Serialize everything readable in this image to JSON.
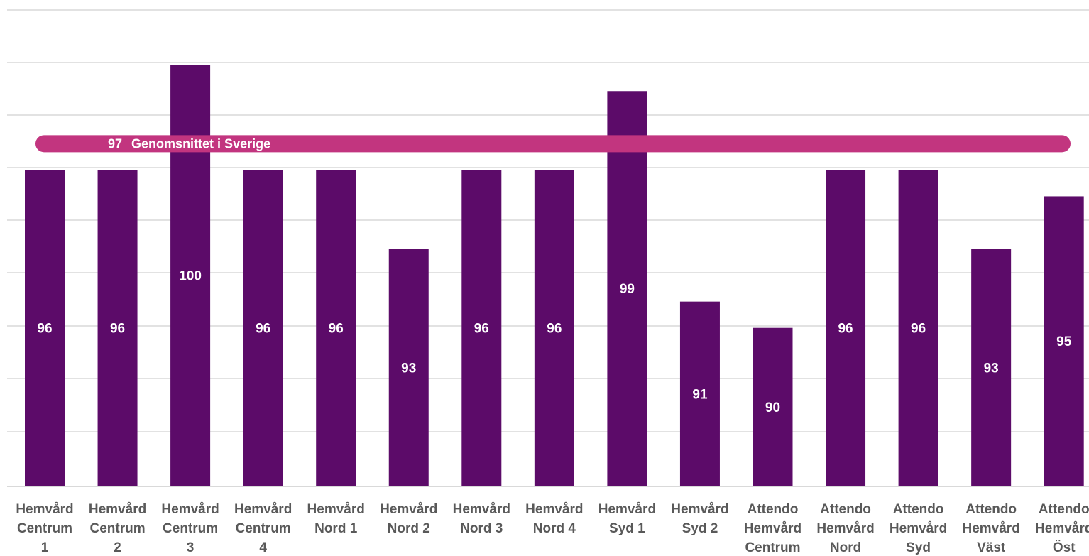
{
  "colors": {
    "bar": "#5c0b69",
    "average_line": "#c2357f",
    "gridline": "#d9d9d9",
    "category_text": "#595959",
    "value_text": "#ffffff"
  },
  "chart_data": {
    "type": "bar",
    "title": "",
    "xlabel": "",
    "ylabel": "",
    "ylim": [
      84,
      101.5
    ],
    "grid": true,
    "categories": [
      [
        "Hemvård",
        "Centrum",
        "1"
      ],
      [
        "Hemvård",
        "Centrum",
        "2"
      ],
      [
        "Hemvård",
        "Centrum",
        "3"
      ],
      [
        "Hemvård",
        "Centrum",
        "4"
      ],
      [
        "Hemvård",
        "Nord 1"
      ],
      [
        "Hemvård",
        "Nord 2"
      ],
      [
        "Hemvård",
        "Nord 3"
      ],
      [
        "Hemvård",
        "Nord 4"
      ],
      [
        "Hemvård",
        "Syd 1"
      ],
      [
        "Hemvård",
        "Syd 2"
      ],
      [
        "Attendo",
        "Hemvård",
        "Centrum"
      ],
      [
        "Attendo",
        "Hemvård",
        "Nord"
      ],
      [
        "Attendo",
        "Hemvård",
        "Syd"
      ],
      [
        "Attendo",
        "Hemvård",
        "Väst"
      ],
      [
        "Attendo",
        "Hemvård",
        "Öst"
      ]
    ],
    "values": [
      96,
      96,
      100,
      96,
      96,
      93,
      96,
      96,
      99,
      91,
      90,
      96,
      96,
      93,
      95
    ],
    "reference_line": {
      "value": 97,
      "value_label": "97",
      "label": "Genomsnittet i Sverige"
    }
  }
}
